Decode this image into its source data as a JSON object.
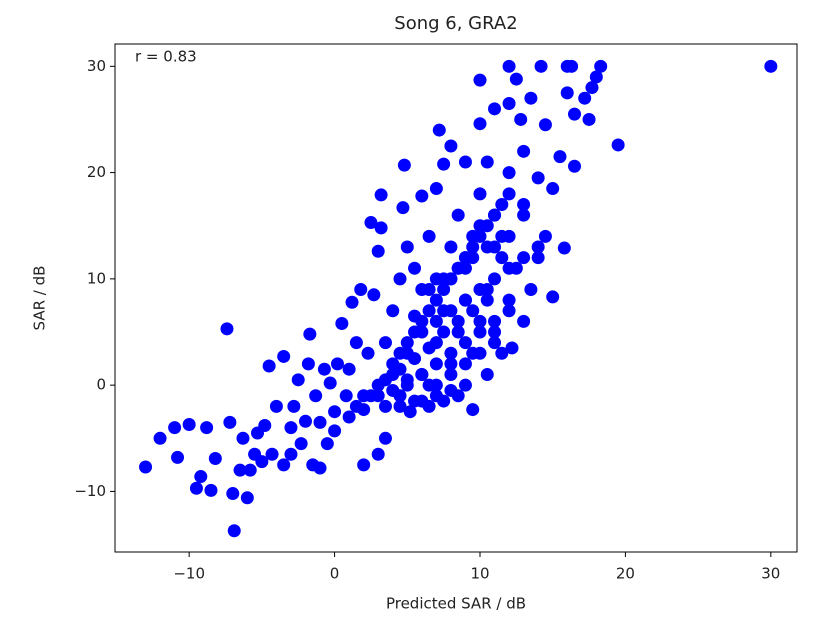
{
  "chart_data": {
    "type": "scatter",
    "title": "Song 6, GRA2",
    "x_label": "Predicted SAR / dB",
    "y_label": "SAR / dB",
    "annotation": "r = 0.83",
    "color": "#0000ff",
    "xlim": [
      -15.1,
      31.8
    ],
    "ylim": [
      -15.7,
      32.1
    ],
    "xticks": [
      {
        "value": -10,
        "label": "−10"
      },
      0,
      10,
      20,
      30
    ],
    "yticks": [
      {
        "value": -10,
        "label": "−10"
      },
      0,
      10,
      20,
      30
    ],
    "x": [
      -13,
      -12,
      -11,
      -10.8,
      -10,
      -9.5,
      -9.2,
      -8.8,
      -8.5,
      -8.2,
      -7.4,
      -7.2,
      -7,
      -6.9,
      -6.5,
      -6.3,
      -6,
      -5.8,
      -5.5,
      -5.3,
      -5,
      -4.8,
      -4.5,
      -4.3,
      -4,
      -3.5,
      -3.5,
      -3,
      -3,
      -2.8,
      -2.5,
      -2.3,
      -2,
      -1.8,
      -1.7,
      -1.5,
      -1.3,
      -1,
      -1,
      -0.7,
      -0.5,
      -0.3,
      0,
      0,
      0.2,
      0.5,
      0.8,
      1,
      1,
      1.2,
      1.5,
      1.8,
      2,
      2,
      2.3,
      2.5,
      2.7,
      3,
      3,
      3,
      3.2,
      3.5,
      3.2,
      3.5,
      4,
      4,
      4.5,
      4.5,
      4.7,
      4.8,
      5,
      5,
      5.2,
      5.5,
      5.5,
      6,
      6,
      6,
      6.5,
      6.5,
      7,
      7,
      7,
      7.2,
      7.5,
      7.5,
      7.5,
      8,
      8,
      8,
      8.5,
      8.5,
      8.5,
      9,
      9,
      9,
      9.5,
      9.5,
      9.5,
      10,
      10,
      10,
      10,
      10.5,
      10.5,
      10.5,
      11,
      11,
      11,
      11.5,
      11.5,
      12,
      12,
      12,
      12,
      12.2,
      12.5,
      12.5,
      12.8,
      13,
      13,
      13,
      13.5,
      13.5,
      14,
      14,
      14.2,
      14.5,
      14.5,
      15,
      15,
      15.5,
      15.8,
      16,
      16,
      16.3,
      16.5,
      16.5,
      17.2,
      17.5,
      17.7,
      18,
      18.3,
      19.5,
      30,
      4,
      4.5,
      5,
      5.5,
      6,
      6.5,
      7,
      7.5,
      8,
      8.5,
      9,
      9.5,
      10,
      10.5,
      11,
      11.5,
      12,
      5,
      6,
      7,
      8,
      9,
      10,
      11,
      12,
      6.5,
      7.5,
      8.5,
      9.5,
      10.5,
      11.5,
      3.5,
      4.5,
      5.5,
      6.5,
      7.5,
      8.5,
      9.5,
      10.5,
      6,
      7,
      8,
      9,
      10,
      11,
      12,
      13,
      7,
      8,
      9,
      10,
      11,
      2,
      3,
      4,
      5,
      6,
      7,
      8,
      9,
      1.5,
      2.5,
      3.5,
      4.5,
      5.5,
      6.5,
      8,
      9,
      10,
      11,
      12,
      13,
      14
    ],
    "y": [
      -7.7,
      -5,
      -4,
      -6.8,
      -3.7,
      -9.7,
      -8.6,
      -4,
      -9.9,
      -6.9,
      5.3,
      -3.5,
      -10.2,
      -13.7,
      -8,
      -5,
      -10.6,
      -8,
      -6.5,
      -4.5,
      -7.2,
      -3.8,
      1.8,
      -6.5,
      -2,
      -7.5,
      2.7,
      -4,
      -6.5,
      -2,
      0.5,
      -5.5,
      -3.4,
      2,
      4.8,
      -7.5,
      -1,
      -3.5,
      -7.8,
      1.5,
      -5.5,
      0.2,
      -2.5,
      -4.3,
      2,
      5.8,
      -1,
      -3,
      1.5,
      7.8,
      4,
      9,
      -7.5,
      -2.3,
      3,
      15.3,
      8.5,
      -1,
      -6.5,
      12.6,
      17.9,
      -5,
      14.8,
      4,
      1,
      7,
      -2,
      10,
      16.7,
      20.7,
      3,
      13,
      -2.5,
      6.5,
      11,
      1,
      9,
      17.8,
      -2,
      14,
      4,
      10,
      18.5,
      24,
      -1.5,
      7,
      20.8,
      2,
      13,
      22.5,
      -1,
      5,
      16,
      8,
      21,
      11,
      -2.3,
      3,
      14,
      6,
      18,
      24.6,
      28.7,
      9,
      1,
      21,
      5,
      13,
      26,
      17,
      3,
      8,
      20,
      30,
      26.5,
      3.5,
      11,
      28.8,
      25,
      6,
      16,
      22,
      27,
      9,
      19.5,
      12,
      30,
      24.5,
      14,
      18.5,
      8.3,
      21.5,
      12.9,
      27.5,
      30,
      30,
      25.5,
      20.6,
      27,
      25,
      28,
      29,
      30,
      22.6,
      30,
      2,
      3,
      4,
      5,
      6,
      7,
      8,
      9,
      10,
      11,
      12,
      13,
      14,
      15,
      16,
      12,
      14,
      0,
      1,
      2,
      3,
      4,
      5,
      6,
      7,
      9,
      10,
      11,
      12,
      13,
      14,
      0.5,
      1.5,
      2.5,
      3.5,
      5,
      6,
      7,
      8,
      5,
      6,
      7,
      8,
      9,
      10,
      11,
      12,
      0,
      1,
      2,
      3,
      4,
      -1,
      0,
      -0.5,
      0.5,
      -1.5,
      -1,
      -0.5,
      0,
      -2,
      -1,
      -2,
      -1,
      -1.5,
      0,
      10,
      12,
      15,
      16,
      18,
      17,
      13
    ]
  }
}
